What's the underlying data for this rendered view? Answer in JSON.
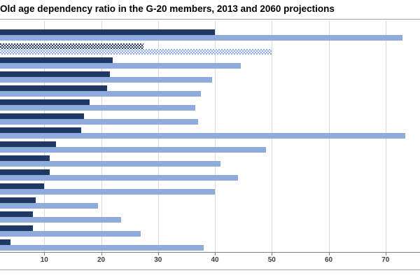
{
  "title": "Old age dependency ratio in the G-20 members, 2013 and 2060 projections",
  "colors": {
    "bar_2013": "#1f3864",
    "bar_2060": "#8faadc",
    "gridline": "#d9d9d9",
    "axis": "#808080",
    "separator": "#a6a6a6",
    "title_text": "#000000",
    "tick_label": "#3f3f3f"
  },
  "chart_data": {
    "type": "bar",
    "orientation": "horizontal",
    "title": "Old age dependency ratio in the G-20 members, 2013 and 2060 projections",
    "series": [
      {
        "name": "2013",
        "values": [
          40,
          27.5,
          22,
          21.5,
          21,
          18,
          17,
          16.5,
          12,
          11,
          11,
          10,
          8.5,
          8,
          8,
          4
        ]
      },
      {
        "name": "2060 projection",
        "values": [
          73,
          50,
          44.5,
          39.5,
          37.5,
          36.5,
          37,
          73.5,
          49,
          41,
          44,
          40,
          19.5,
          23.5,
          27,
          38
        ]
      }
    ],
    "rows": 16,
    "patterned_row_index": 1,
    "x_ticks": [
      10,
      20,
      30,
      40,
      50,
      60,
      70
    ],
    "xlim": [
      0,
      76
    ],
    "grid": true,
    "category_labels_visible": false,
    "legend_visible": false
  }
}
